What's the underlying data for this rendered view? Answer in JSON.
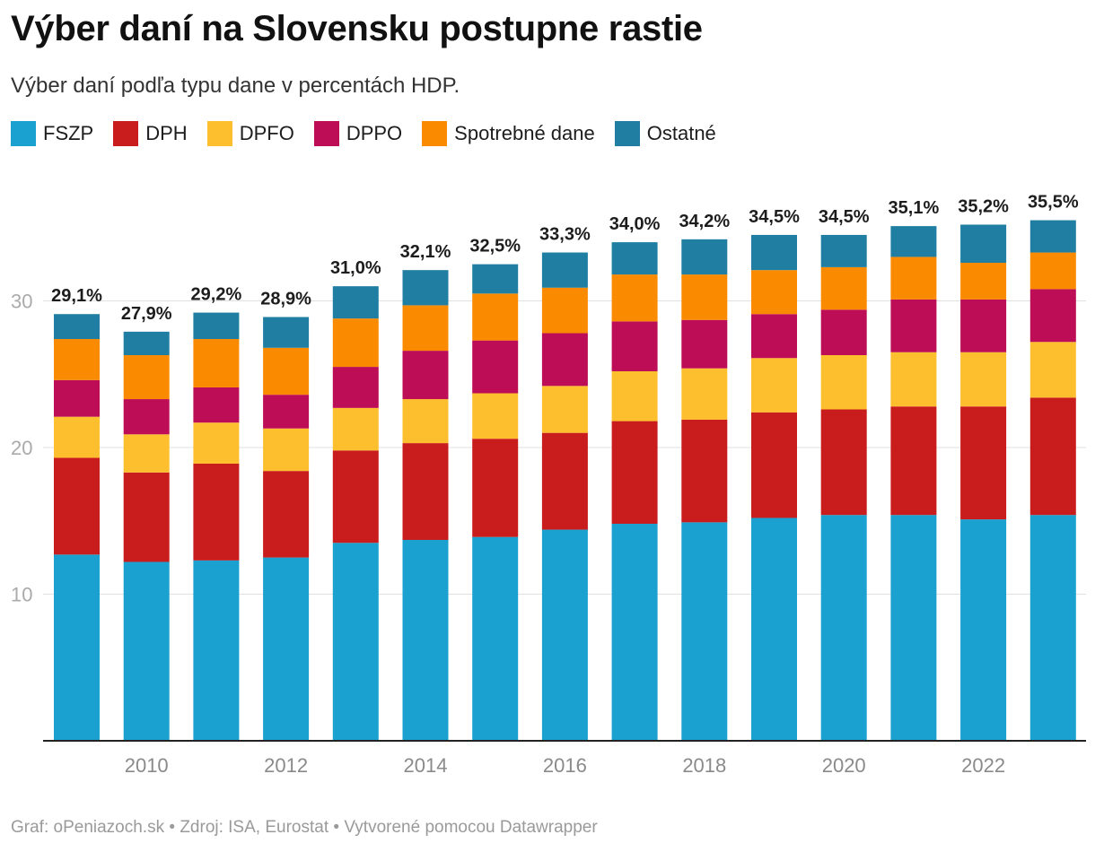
{
  "title": "Výber daní na Slovensku postupne rastie",
  "subtitle": "Výber daní podľa typu dane v percentách HDP.",
  "footer": {
    "source_prefix": "Graf: oPeniazoch.sk",
    "source_sep1": " • ",
    "source": "Zdroj: ISA, Eurostat",
    "source_sep2": " • ",
    "credit": "Vytvorené pomocou Datawrapper"
  },
  "chart_data": {
    "type": "bar",
    "stacked": true,
    "title": "Výber daní na Slovensku postupne rastie",
    "subtitle": "Výber daní podľa typu dane v percentách HDP.",
    "xlabel": "",
    "ylabel": "",
    "ylim": [
      0,
      37
    ],
    "yticks": [
      10,
      20,
      30
    ],
    "grid": true,
    "legend_position": "top-left",
    "categories": [
      "2009",
      "2010",
      "2011",
      "2012",
      "2013",
      "2014",
      "2015",
      "2016",
      "2017",
      "2018",
      "2019",
      "2020",
      "2021",
      "2022",
      "2023"
    ],
    "x_tick_labels": [
      "2010",
      "2012",
      "2014",
      "2016",
      "2018",
      "2020",
      "2022"
    ],
    "totals": [
      "29,1%",
      "27,9%",
      "29,2%",
      "28,9%",
      "31,0%",
      "32,1%",
      "32,5%",
      "33,3%",
      "34,0%",
      "34,2%",
      "34,5%",
      "34,5%",
      "35,1%",
      "35,2%",
      "35,5%"
    ],
    "series": [
      {
        "name": "FSZP",
        "color": "#1aa1cf",
        "values": [
          12.7,
          12.2,
          12.3,
          12.5,
          13.5,
          13.7,
          13.9,
          14.4,
          14.8,
          14.9,
          15.2,
          15.4,
          15.4,
          15.1,
          15.4
        ]
      },
      {
        "name": "DPH",
        "color": "#c91d1d",
        "values": [
          6.6,
          6.1,
          6.6,
          5.9,
          6.3,
          6.6,
          6.7,
          6.6,
          7.0,
          7.0,
          7.2,
          7.2,
          7.4,
          7.7,
          8.0
        ]
      },
      {
        "name": "DPFO",
        "color": "#fdbf2d",
        "values": [
          2.8,
          2.6,
          2.8,
          2.9,
          2.9,
          3.0,
          3.1,
          3.2,
          3.4,
          3.5,
          3.7,
          3.7,
          3.7,
          3.7,
          3.8
        ]
      },
      {
        "name": "DPPO",
        "color": "#bc0d56",
        "values": [
          2.5,
          2.4,
          2.4,
          2.3,
          2.8,
          3.3,
          3.6,
          3.6,
          3.4,
          3.3,
          3.0,
          3.1,
          3.6,
          3.6,
          3.6
        ]
      },
      {
        "name": "Spotrebné dane",
        "color": "#fa8b00",
        "values": [
          2.8,
          3.0,
          3.3,
          3.2,
          3.3,
          3.1,
          3.2,
          3.1,
          3.2,
          3.1,
          3.0,
          2.9,
          2.9,
          2.5,
          2.5
        ]
      },
      {
        "name": "Ostatné",
        "color": "#1f7ea1",
        "values": [
          1.7,
          1.6,
          1.8,
          2.1,
          2.2,
          2.4,
          2.0,
          2.4,
          2.2,
          2.4,
          2.4,
          2.2,
          2.1,
          2.6,
          2.2
        ]
      }
    ]
  }
}
